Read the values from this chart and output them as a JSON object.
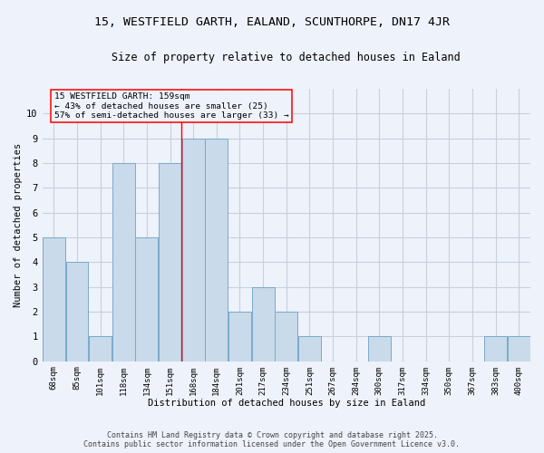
{
  "title1": "15, WESTFIELD GARTH, EALAND, SCUNTHORPE, DN17 4JR",
  "title2": "Size of property relative to detached houses in Ealand",
  "xlabel": "Distribution of detached houses by size in Ealand",
  "ylabel": "Number of detached properties",
  "categories": [
    "68sqm",
    "85sqm",
    "101sqm",
    "118sqm",
    "134sqm",
    "151sqm",
    "168sqm",
    "184sqm",
    "201sqm",
    "217sqm",
    "234sqm",
    "251sqm",
    "267sqm",
    "284sqm",
    "300sqm",
    "317sqm",
    "334sqm",
    "350sqm",
    "367sqm",
    "383sqm",
    "400sqm"
  ],
  "values": [
    5,
    4,
    1,
    8,
    5,
    8,
    9,
    9,
    2,
    3,
    2,
    1,
    0,
    0,
    1,
    0,
    0,
    0,
    0,
    1,
    1
  ],
  "bar_color": "#c9daea",
  "bar_edge_color": "#7aaaca",
  "grid_color": "#c8d0dc",
  "background_color": "#eef2fb",
  "red_line_index": 5,
  "annotation_line": "15 WESTFIELD GARTH: 159sqm",
  "annotation_line2": "← 43% of detached houses are smaller (25)",
  "annotation_line3": "57% of semi-detached houses are larger (33) →",
  "ylim": [
    0,
    11
  ],
  "yticks": [
    0,
    1,
    2,
    3,
    4,
    5,
    6,
    7,
    8,
    9,
    10,
    11
  ],
  "footer1": "Contains HM Land Registry data © Crown copyright and database right 2025.",
  "footer2": "Contains public sector information licensed under the Open Government Licence v3.0."
}
